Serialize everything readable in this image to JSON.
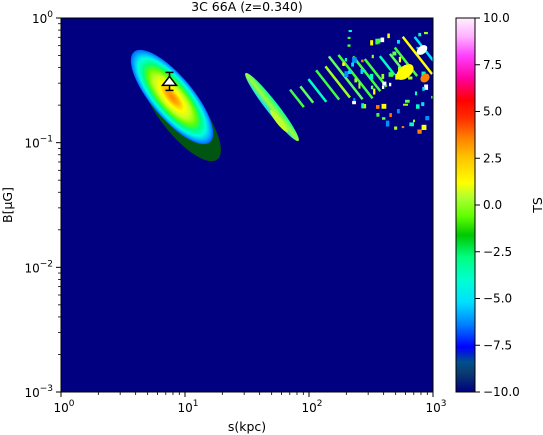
{
  "chart_data": {
    "type": "heatmap",
    "title": "3C 66A (z=0.340)",
    "xlabel": "s(kpc)",
    "ylabel": "B[μG]",
    "x_scale": "log",
    "y_scale": "log",
    "xlim": [
      1,
      1000
    ],
    "ylim": [
      0.001,
      1
    ],
    "x_ticks": [
      {
        "value": 1,
        "label": "10^0"
      },
      {
        "value": 10,
        "label": "10^1"
      },
      {
        "value": 100,
        "label": "10^2"
      },
      {
        "value": 1000,
        "label": "10^3"
      }
    ],
    "y_ticks": [
      {
        "value": 0.001,
        "label": "10^-3"
      },
      {
        "value": 0.01,
        "label": "10^-2"
      },
      {
        "value": 0.1,
        "label": "10^-1"
      },
      {
        "value": 1,
        "label": "10^0"
      }
    ],
    "colorbar": {
      "label": "TS",
      "range": [
        -10,
        10
      ],
      "colormap": "gist_ncar",
      "ticks": [
        "10.0",
        "7.5",
        "5.0",
        "2.5",
        "0.0",
        "−2.5",
        "−5.0",
        "−7.5",
        "−10.0"
      ],
      "tick_values": [
        10,
        7.5,
        5,
        2.5,
        0,
        -2.5,
        -5,
        -7.5,
        -10
      ]
    },
    "best_fit_marker": {
      "s_kpc": 7.5,
      "B_uG": 0.31,
      "ts": 4.5
    }
  }
}
